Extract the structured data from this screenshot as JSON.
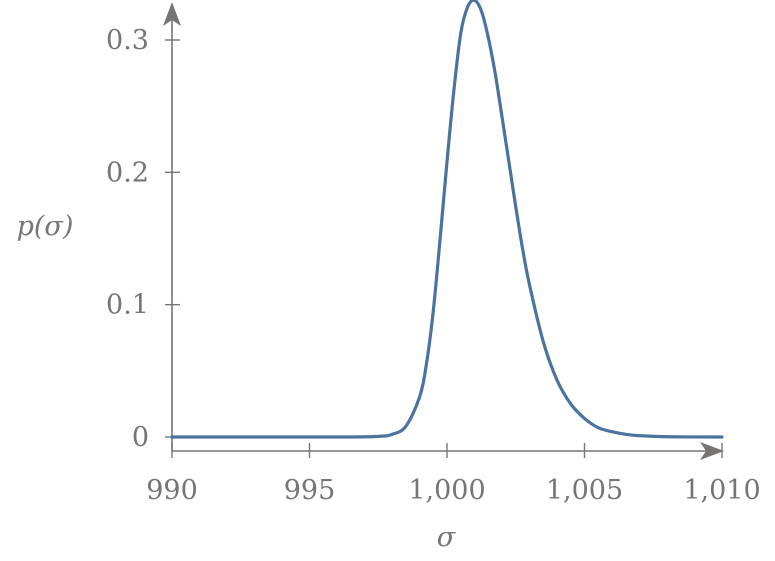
{
  "chart_data": {
    "type": "line",
    "xlabel": "σ",
    "ylabel": "p(σ)",
    "xlim": [
      990,
      1010
    ],
    "ylim": [
      0,
      0.33
    ],
    "x_ticks": [
      990,
      995,
      1000,
      1005,
      1010
    ],
    "x_tick_labels": [
      "990",
      "995",
      "1,000",
      "1,005",
      "1,010"
    ],
    "y_ticks": [
      0,
      0.1,
      0.2,
      0.3
    ],
    "y_tick_labels": [
      "0",
      "0.1",
      "0.2",
      "0.3"
    ],
    "grid": false,
    "series": [
      {
        "color": "#4a73a0",
        "x": [
          990,
          996,
          997.5,
          998,
          998.5,
          999,
          999.25,
          999.5,
          999.75,
          1000,
          1000.25,
          1000.5,
          1000.75,
          1001,
          1001.25,
          1001.5,
          1001.75,
          1002,
          1002.25,
          1002.5,
          1002.75,
          1003,
          1003.5,
          1004,
          1004.5,
          1005,
          1005.5,
          1006,
          1006.5,
          1007,
          1008,
          1010
        ],
        "y": [
          0,
          0,
          0.0005,
          0.002,
          0.008,
          0.03,
          0.055,
          0.095,
          0.15,
          0.208,
          0.262,
          0.305,
          0.325,
          0.33,
          0.322,
          0.302,
          0.275,
          0.242,
          0.208,
          0.174,
          0.142,
          0.115,
          0.072,
          0.043,
          0.025,
          0.014,
          0.007,
          0.004,
          0.002,
          0.001,
          0.0002,
          0
        ]
      }
    ]
  }
}
